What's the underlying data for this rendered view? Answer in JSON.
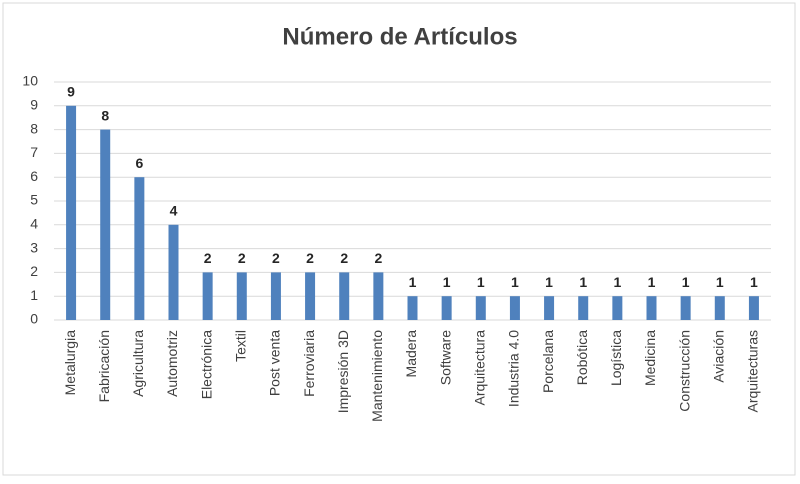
{
  "chart_data": {
    "type": "bar",
    "title": "Número de Artículos",
    "categories": [
      "Metalurgia",
      "Fabricación",
      "Agricultura",
      "Automotriz",
      "Electrónica",
      "Textil",
      "Post venta",
      "Ferroviaria",
      "Impresión 3D",
      "Mantenimiento",
      "Madera",
      "Software",
      "Arquitectura",
      "Industria 4.0",
      "Porcelana",
      "Robótica",
      "Logística",
      "Medicina",
      "Construcción",
      "Aviación",
      "Arquitecturas"
    ],
    "values": [
      9,
      8,
      6,
      4,
      2,
      2,
      2,
      2,
      2,
      2,
      1,
      1,
      1,
      1,
      1,
      1,
      1,
      1,
      1,
      1,
      1
    ],
    "color": "#4f81bd",
    "ylim": [
      0,
      10
    ],
    "yticks": [
      0,
      1,
      2,
      3,
      4,
      5,
      6,
      7,
      8,
      9,
      10
    ],
    "grid": true
  }
}
